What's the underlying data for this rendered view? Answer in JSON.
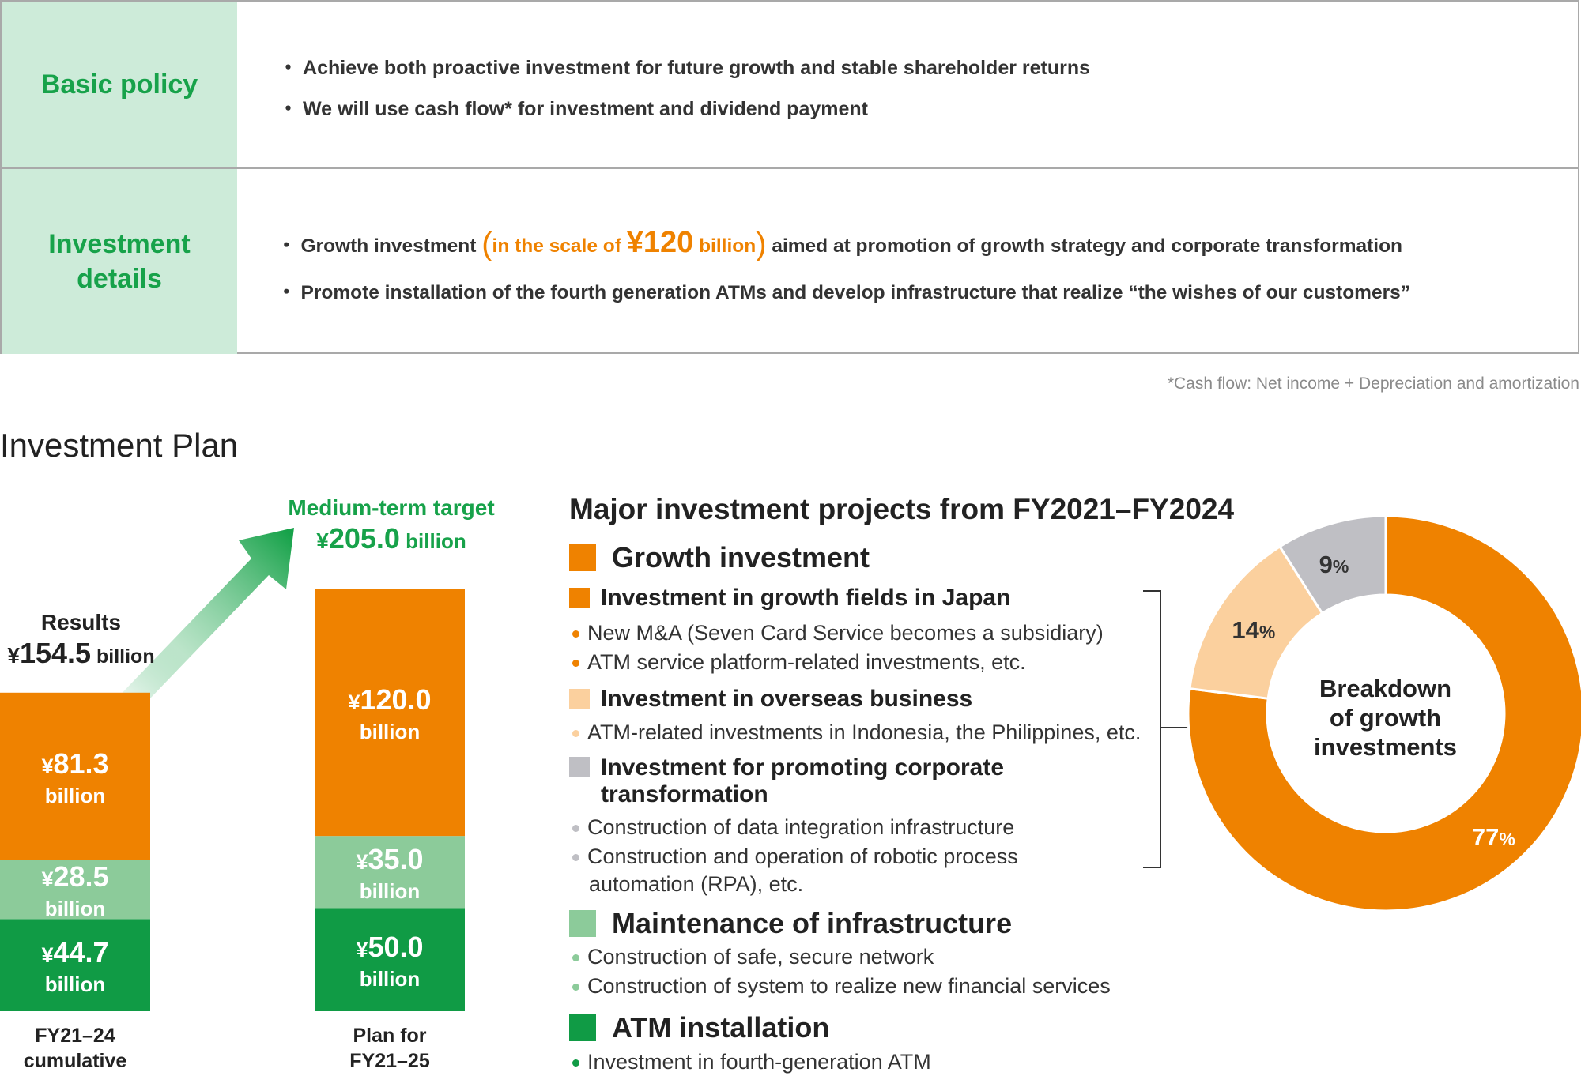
{
  "policy_table": {
    "basic_policy": {
      "label": "Basic policy",
      "bullets": [
        "Achieve both proactive investment for future growth and stable shareholder returns",
        "We will use cash flow* for investment and dividend payment"
      ]
    },
    "investment_details": {
      "label_line1": "Investment",
      "label_line2": "details",
      "bullet1_pre": "Growth investment",
      "bullet1_paren_open": "(",
      "bullet1_scale_pre": "in the scale of ",
      "bullet1_scale_yen": "¥",
      "bullet1_scale_num": "120",
      "bullet1_scale_unit": " billion",
      "bullet1_paren_close": ")",
      "bullet1_post": " aimed at promotion of growth strategy and corporate transformation",
      "bullet2": "Promote installation of the fourth generation ATMs and develop infrastructure that realize “the wishes of our customers”"
    },
    "bullet_mark": "・",
    "footnote": "*Cash flow: Net income + Depreciation and amortization"
  },
  "section_title": "Investment Plan",
  "colors": {
    "orange": "#ef8200",
    "light_orange": "#fbd09e",
    "light_green": "#8ccb9a",
    "green": "#109b45",
    "gray": "#bfbfc4",
    "head_bg": "#cdebd9",
    "head_text": "#17a24a"
  },
  "chart_data": [
    {
      "type": "bar",
      "stacked": true,
      "categories": [
        "FY21–24 cumulative",
        "Plan for FY21–25"
      ],
      "category_lines": [
        [
          "FY21–24",
          "cumulative"
        ],
        [
          "Plan for",
          "FY21–25"
        ]
      ],
      "series": [
        {
          "name": "ATM installation",
          "values": [
            44.7,
            50.0
          ],
          "labels": [
            "44.7",
            "50.0"
          ],
          "color": "#109b45"
        },
        {
          "name": "Maintenance of infrastructure",
          "values": [
            28.5,
            35.0
          ],
          "labels": [
            "28.5",
            "35.0"
          ],
          "color": "#8ccb9a"
        },
        {
          "name": "Growth investment",
          "values": [
            81.3,
            120.0
          ],
          "labels": [
            "81.3",
            "120.0"
          ],
          "color": "#ef8200"
        }
      ],
      "value_unit": "billion",
      "currency": "¥",
      "ylim": [
        0,
        205
      ],
      "totals": {
        "results": {
          "title": "Results",
          "currency": "¥",
          "value": "154.5",
          "unit": "billion"
        },
        "target": {
          "title": "Medium-term target",
          "currency": "¥",
          "value": "205.0",
          "unit": "billion"
        }
      }
    },
    {
      "type": "pie",
      "donut": true,
      "title": "Breakdown of growth investments",
      "center_lines": [
        "Breakdown",
        "of growth",
        "investments"
      ],
      "slices": [
        {
          "name": "Investment in growth fields in Japan",
          "value": 77,
          "label": "77",
          "color": "#ef8200"
        },
        {
          "name": "Investment in overseas business",
          "value": 14,
          "label": "14",
          "color": "#fbd09e"
        },
        {
          "name": "Investment for promoting corporate transformation",
          "value": 9,
          "label": "9",
          "color": "#bfbfc4"
        }
      ],
      "percent_symbol": "%"
    }
  ],
  "projects": {
    "title": "Major investment projects from FY2021–FY2024",
    "growth": {
      "label": "Growth investment",
      "japan": {
        "label": "Investment in growth fields in Japan",
        "items": [
          "New M&A (Seven Card Service becomes a subsidiary)",
          "ATM service platform-related investments, etc."
        ]
      },
      "overseas": {
        "label": "Investment in overseas business",
        "items": [
          "ATM-related investments in Indonesia, the Philippines, etc."
        ]
      },
      "transformation": {
        "label_line1": "Investment for promoting corporate",
        "label_line2": "transformation",
        "items": [
          "Construction of data integration infrastructure",
          "Construction and operation of robotic process",
          "automation (RPA), etc."
        ]
      }
    },
    "maintenance": {
      "label": "Maintenance of infrastructure",
      "items": [
        "Construction of safe, secure network",
        "Construction of system to realize new financial services"
      ]
    },
    "atm": {
      "label": "ATM installation",
      "items": [
        "Investment in fourth-generation ATM"
      ]
    }
  }
}
